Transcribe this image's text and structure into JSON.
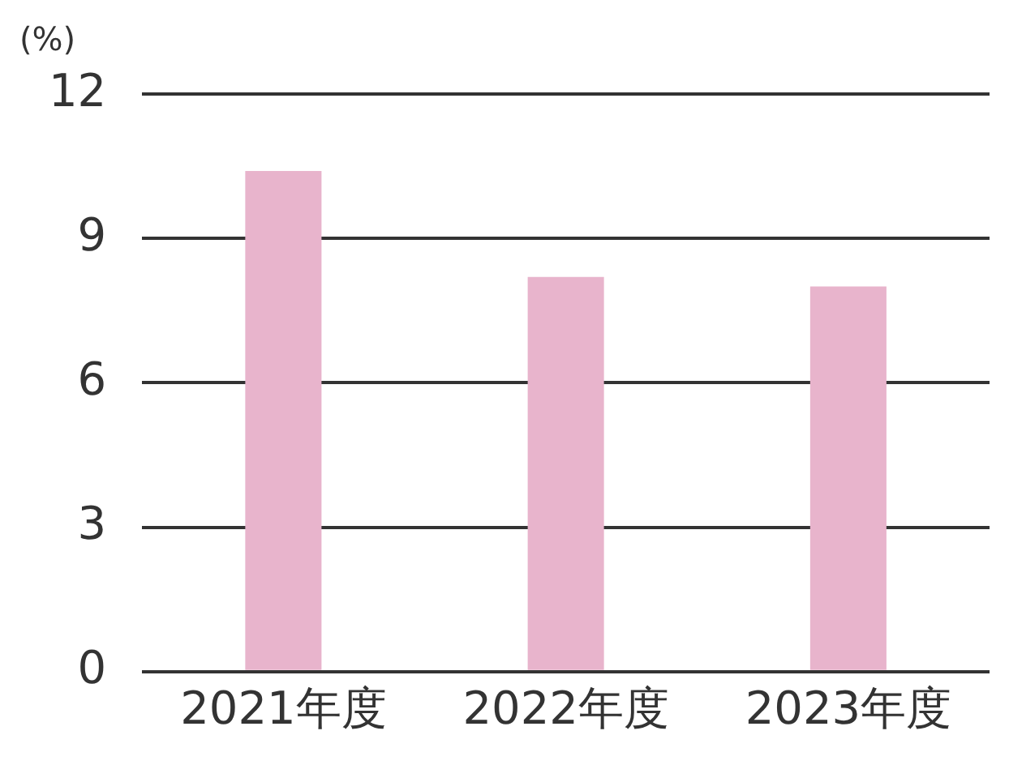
{
  "chart_data": {
    "type": "bar",
    "ylabel": "(%)",
    "categories": [
      "2021年度",
      "2022年度",
      "2023年度"
    ],
    "values": [
      10.4,
      8.2,
      8.0
    ],
    "color": "#e8b4cc",
    "ylim": [
      0,
      12
    ],
    "yticks": [
      0,
      3,
      6,
      9,
      12
    ],
    "grid": "y",
    "legend": false
  }
}
